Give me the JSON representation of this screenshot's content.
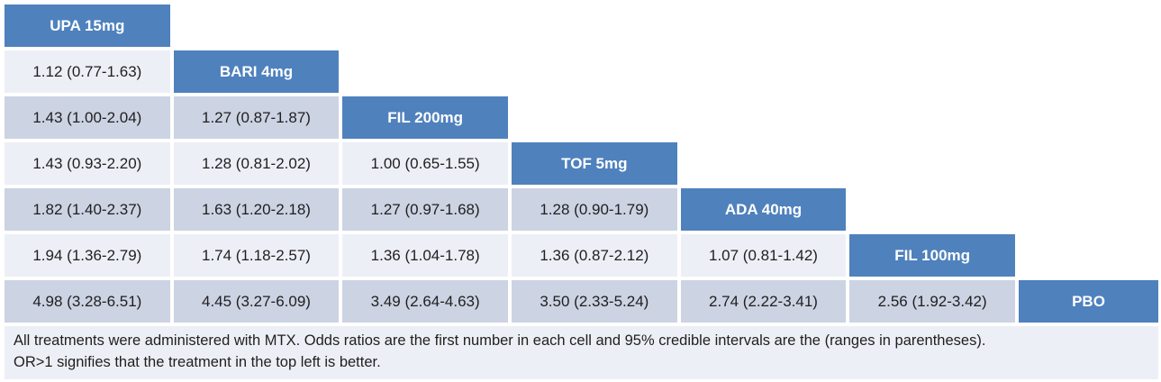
{
  "colors": {
    "header_blue": "#4f81bd",
    "band_light": "#edeff6",
    "band_dark": "#ccd3e3",
    "header_text": "#ffffff",
    "body_text": "#1f1f1f",
    "background": "#ffffff"
  },
  "chart_data": {
    "type": "table",
    "table_kind": "league-table-lower-triangle",
    "treatments": [
      "UPA 15mg",
      "BARI 4mg",
      "FIL 200mg",
      "TOF 5mg",
      "ADA 40mg",
      "FIL 100mg",
      "PBO"
    ],
    "rows": [
      {
        "label": "UPA 15mg",
        "cells": []
      },
      {
        "label": "BARI 4mg",
        "cells": [
          {
            "text": "1.12 (0.77-1.63)",
            "or": 1.12,
            "ci": [
              0.77,
              1.63
            ]
          }
        ]
      },
      {
        "label": "FIL 200mg",
        "cells": [
          {
            "text": "1.43 (1.00-2.04)",
            "or": 1.43,
            "ci": [
              1.0,
              2.04
            ]
          },
          {
            "text": "1.27 (0.87-1.87)",
            "or": 1.27,
            "ci": [
              0.87,
              1.87
            ]
          }
        ]
      },
      {
        "label": "TOF 5mg",
        "cells": [
          {
            "text": "1.43 (0.93-2.20)",
            "or": 1.43,
            "ci": [
              0.93,
              2.2
            ]
          },
          {
            "text": "1.28 (0.81-2.02)",
            "or": 1.28,
            "ci": [
              0.81,
              2.02
            ]
          },
          {
            "text": "1.00 (0.65-1.55)",
            "or": 1.0,
            "ci": [
              0.65,
              1.55
            ]
          }
        ]
      },
      {
        "label": "ADA 40mg",
        "cells": [
          {
            "text": "1.82 (1.40-2.37)",
            "or": 1.82,
            "ci": [
              1.4,
              2.37
            ]
          },
          {
            "text": "1.63 (1.20-2.18)",
            "or": 1.63,
            "ci": [
              1.2,
              2.18
            ]
          },
          {
            "text": "1.27 (0.97-1.68)",
            "or": 1.27,
            "ci": [
              0.97,
              1.68
            ]
          },
          {
            "text": "1.28 (0.90-1.79)",
            "or": 1.28,
            "ci": [
              0.9,
              1.79
            ]
          }
        ]
      },
      {
        "label": "FIL 100mg",
        "cells": [
          {
            "text": "1.94 (1.36-2.79)",
            "or": 1.94,
            "ci": [
              1.36,
              2.79
            ]
          },
          {
            "text": "1.74 (1.18-2.57)",
            "or": 1.74,
            "ci": [
              1.18,
              2.57
            ]
          },
          {
            "text": "1.36 (1.04-1.78)",
            "or": 1.36,
            "ci": [
              1.04,
              1.78
            ]
          },
          {
            "text": "1.36 (0.87-2.12)",
            "or": 1.36,
            "ci": [
              0.87,
              2.12
            ]
          },
          {
            "text": "1.07 (0.81-1.42)",
            "or": 1.07,
            "ci": [
              0.81,
              1.42
            ]
          }
        ]
      },
      {
        "label": "PBO",
        "cells": [
          {
            "text": "4.98 (3.28-6.51)",
            "or": 4.98,
            "ci": [
              3.28,
              6.51
            ]
          },
          {
            "text": "4.45 (3.27-6.09)",
            "or": 4.45,
            "ci": [
              3.27,
              6.09
            ]
          },
          {
            "text": "3.49 (2.64-4.63)",
            "or": 3.49,
            "ci": [
              2.64,
              4.63
            ]
          },
          {
            "text": "3.50 (2.33-5.24)",
            "or": 3.5,
            "ci": [
              2.33,
              5.24
            ]
          },
          {
            "text": "2.74 (2.22-3.41)",
            "or": 2.74,
            "ci": [
              2.22,
              3.41
            ]
          },
          {
            "text": "2.56 (1.92-3.42)",
            "or": 2.56,
            "ci": [
              1.92,
              3.42
            ]
          }
        ]
      }
    ],
    "footnotes": [
      "All treatments were administered with MTX. Odds ratios are the first number in each cell and 95% credible intervals are the (ranges in parentheses).",
      "OR>1 signifies that the treatment in the top left is better."
    ]
  }
}
